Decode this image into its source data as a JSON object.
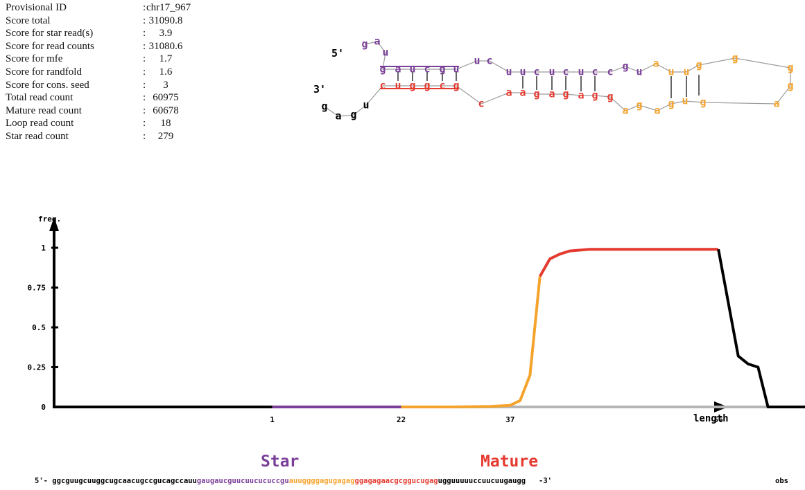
{
  "stats": [
    {
      "label": "Provisional ID",
      "colon": ":",
      "value": "chr17_967"
    },
    {
      "label": "Score total",
      "colon": ":",
      "value": "31090.8"
    },
    {
      "label": "Score for star read(s)",
      "colon": ":",
      "value": "3.9"
    },
    {
      "label": "Score for read counts",
      "colon": ":",
      "value": "31080.6"
    },
    {
      "label": "Score for mfe",
      "colon": ":",
      "value": "1.7"
    },
    {
      "label": "Score for randfold",
      "colon": ":",
      "value": "1.6"
    },
    {
      "label": "Score for cons. seed",
      "colon": ":",
      "value": "3"
    },
    {
      "label": "Total read count",
      "colon": ":",
      "value": "60975"
    },
    {
      "label": "Mature read count",
      "colon": ":",
      "value": "60678"
    },
    {
      "label": "Loop read count",
      "colon": ":",
      "value": "18"
    },
    {
      "label": "Star read count",
      "colon": ":",
      "value": "279"
    }
  ],
  "colors": {
    "star": "#7a3f98",
    "mature": "#e53a2f",
    "loop": "#f4a32c",
    "flank": "#000000",
    "baseline": "#b5b5b5",
    "backbone": "#9a9a9a"
  },
  "hairpin": {
    "five_prime_label": "5'",
    "three_prime_label": "3'",
    "top_strand": [
      {
        "base": "g",
        "role": "star"
      },
      {
        "base": "a",
        "role": "star"
      },
      {
        "base": "u",
        "role": "star"
      },
      {
        "base": "g",
        "role": "star"
      },
      {
        "base": "a",
        "role": "star"
      },
      {
        "base": "u",
        "role": "star"
      },
      {
        "base": "c",
        "role": "star"
      },
      {
        "base": "g",
        "role": "star"
      },
      {
        "base": "u",
        "role": "star"
      },
      {
        "base": "u",
        "role": "star"
      },
      {
        "base": "c",
        "role": "star"
      },
      {
        "base": "u",
        "role": "star"
      },
      {
        "base": "u",
        "role": "star"
      },
      {
        "base": "c",
        "role": "star"
      },
      {
        "base": "u",
        "role": "star"
      },
      {
        "base": "c",
        "role": "star"
      },
      {
        "base": "u",
        "role": "star"
      },
      {
        "base": "c",
        "role": "star"
      },
      {
        "base": "c",
        "role": "star"
      },
      {
        "base": "g",
        "role": "star"
      },
      {
        "base": "u",
        "role": "star"
      },
      {
        "base": "a",
        "role": "loop"
      },
      {
        "base": "u",
        "role": "loop"
      },
      {
        "base": "u",
        "role": "loop"
      },
      {
        "base": "g",
        "role": "loop"
      },
      {
        "base": "g",
        "role": "loop"
      }
    ],
    "loop_tip": [
      {
        "base": "g",
        "role": "loop"
      },
      {
        "base": "g",
        "role": "loop"
      },
      {
        "base": "a",
        "role": "loop"
      }
    ],
    "bottom_strand": [
      {
        "base": "g",
        "role": "flank"
      },
      {
        "base": "a",
        "role": "flank"
      },
      {
        "base": "g",
        "role": "flank"
      },
      {
        "base": "u",
        "role": "flank"
      },
      {
        "base": "c",
        "role": "mature"
      },
      {
        "base": "u",
        "role": "mature"
      },
      {
        "base": "g",
        "role": "mature"
      },
      {
        "base": "g",
        "role": "mature"
      },
      {
        "base": "c",
        "role": "mature"
      },
      {
        "base": "g",
        "role": "mature"
      },
      {
        "base": "c",
        "role": "mature"
      },
      {
        "base": "a",
        "role": "mature"
      },
      {
        "base": "a",
        "role": "mature"
      },
      {
        "base": "g",
        "role": "mature"
      },
      {
        "base": "a",
        "role": "mature"
      },
      {
        "base": "g",
        "role": "mature"
      },
      {
        "base": "a",
        "role": "mature"
      },
      {
        "base": "g",
        "role": "mature"
      },
      {
        "base": "g",
        "role": "mature"
      },
      {
        "base": "a",
        "role": "loop"
      },
      {
        "base": "g",
        "role": "loop"
      },
      {
        "base": "a",
        "role": "loop"
      },
      {
        "base": "g",
        "role": "loop"
      },
      {
        "base": "u",
        "role": "loop"
      },
      {
        "base": "g",
        "role": "loop"
      }
    ]
  },
  "chart_data": {
    "type": "line",
    "xlabel": "length",
    "ylabel": "freq.",
    "ylim": [
      0,
      1
    ],
    "yticks": [
      "0",
      "0.25",
      "0.5",
      "0.75",
      "1"
    ],
    "xticks": [
      "1",
      "22",
      "37",
      "56"
    ],
    "segments": [
      {
        "role": "flank",
        "points": [
          [
            -21,
            0
          ],
          [
            1,
            0
          ]
        ]
      },
      {
        "role": "star",
        "points": [
          [
            1,
            0
          ],
          [
            14,
            0
          ]
        ]
      },
      {
        "role": "loop",
        "points": [
          [
            14,
            0
          ],
          [
            19,
            0
          ],
          [
            23,
            0.003
          ],
          [
            25,
            0.01
          ],
          [
            26,
            0.04
          ],
          [
            27,
            0.2
          ],
          [
            28,
            0.82
          ]
        ]
      },
      {
        "role": "mature",
        "points": [
          [
            28,
            0.82
          ],
          [
            29,
            0.93
          ],
          [
            30,
            0.96
          ],
          [
            31,
            0.98
          ],
          [
            33,
            0.99
          ],
          [
            37,
            0.99
          ],
          [
            41,
            0.99
          ],
          [
            44,
            0.99
          ],
          [
            46,
            0.99
          ]
        ]
      },
      {
        "role": "flank",
        "points": [
          [
            46,
            0.99
          ],
          [
            48,
            0.32
          ],
          [
            49,
            0.27
          ],
          [
            50,
            0.25
          ],
          [
            51,
            0.0
          ],
          [
            62,
            0.0
          ]
        ]
      }
    ],
    "baseline": {
      "role": "baseline",
      "points": [
        [
          14,
          0
        ],
        [
          51,
          0
        ]
      ]
    }
  },
  "labels": {
    "star": "Star",
    "mature": "Mature",
    "obs": "obs"
  },
  "sequence": {
    "prefix": "5'- ",
    "suffix": "   -3'",
    "parts": [
      {
        "text": "ggcguugcuuggcugcaacugccgucagccauu",
        "role": "flank"
      },
      {
        "text": "gaugaucguucuucucuccgu",
        "role": "star"
      },
      {
        "text": "auuggggagugagag",
        "role": "loop"
      },
      {
        "text": "ggagagaacgcggucugag",
        "role": "mature"
      },
      {
        "text": "ugguuuuuccuucuugaugg",
        "role": "flank"
      }
    ]
  }
}
